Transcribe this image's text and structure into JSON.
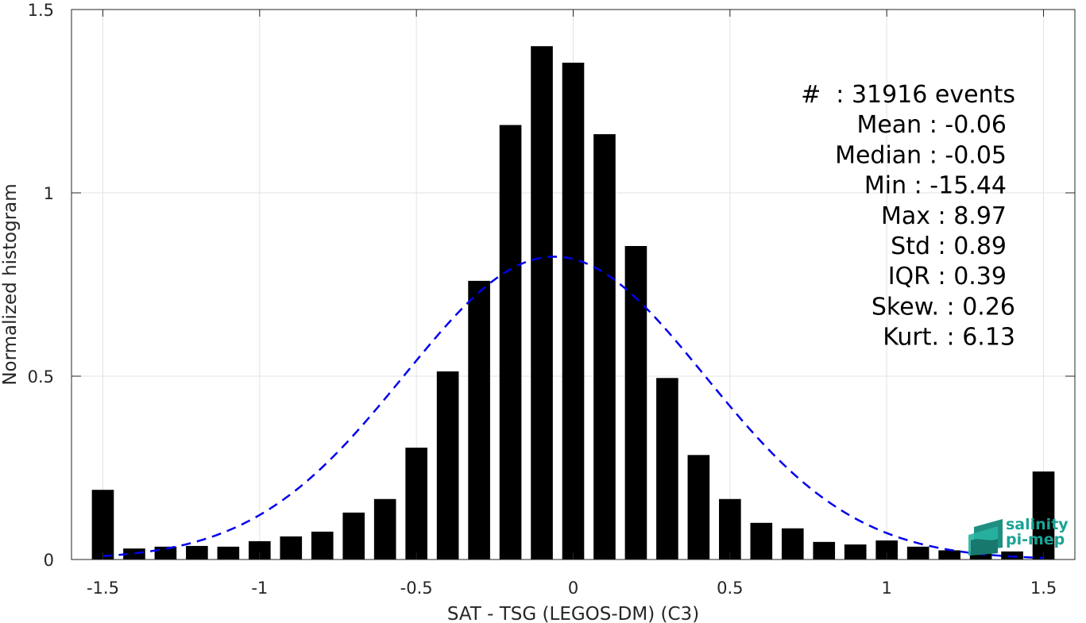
{
  "chart_data": {
    "type": "bar",
    "xlabel": "SAT - TSG (LEGOS-DM) (C3)",
    "ylabel": "Normalized histogram",
    "xlim": [
      -1.6,
      1.6
    ],
    "ylim": [
      0,
      1.5
    ],
    "xticks": [
      -1.5,
      -1,
      -0.5,
      0,
      0.5,
      1,
      1.5
    ],
    "xtick_labels": [
      "-1.5",
      "-1",
      "-0.5",
      "0",
      "0.5",
      "1",
      "1.5"
    ],
    "yticks": [
      0,
      0.5,
      1,
      1.5
    ],
    "ytick_labels": [
      "0",
      "0.5",
      "1",
      "1.5"
    ],
    "grid": true,
    "bar_width": 0.07,
    "bar_color": "#000000",
    "bars": [
      {
        "x": -1.5,
        "value": 0.19
      },
      {
        "x": -1.4,
        "value": 0.03
      },
      {
        "x": -1.3,
        "value": 0.035
      },
      {
        "x": -1.2,
        "value": 0.037
      },
      {
        "x": -1.1,
        "value": 0.035
      },
      {
        "x": -1.0,
        "value": 0.05
      },
      {
        "x": -0.9,
        "value": 0.063
      },
      {
        "x": -0.8,
        "value": 0.076
      },
      {
        "x": -0.7,
        "value": 0.128
      },
      {
        "x": -0.6,
        "value": 0.165
      },
      {
        "x": -0.5,
        "value": 0.305
      },
      {
        "x": -0.4,
        "value": 0.513
      },
      {
        "x": -0.3,
        "value": 0.76
      },
      {
        "x": -0.2,
        "value": 1.185
      },
      {
        "x": -0.1,
        "value": 1.4
      },
      {
        "x": 0.0,
        "value": 1.355
      },
      {
        "x": 0.1,
        "value": 1.16
      },
      {
        "x": 0.2,
        "value": 0.855
      },
      {
        "x": 0.3,
        "value": 0.495
      },
      {
        "x": 0.4,
        "value": 0.285
      },
      {
        "x": 0.5,
        "value": 0.165
      },
      {
        "x": 0.6,
        "value": 0.1
      },
      {
        "x": 0.7,
        "value": 0.085
      },
      {
        "x": 0.8,
        "value": 0.048
      },
      {
        "x": 0.9,
        "value": 0.041
      },
      {
        "x": 1.0,
        "value": 0.052
      },
      {
        "x": 1.1,
        "value": 0.035
      },
      {
        "x": 1.2,
        "value": 0.025
      },
      {
        "x": 1.3,
        "value": 0.022
      },
      {
        "x": 1.4,
        "value": 0.022
      },
      {
        "x": 1.5,
        "value": 0.24
      }
    ],
    "fit_curve": {
      "type": "gaussian",
      "mean": -0.06,
      "std": 0.48,
      "peak": 0.826,
      "x_range": [
        -1.5,
        1.5
      ],
      "color": "#0000ee",
      "style": "dashed"
    },
    "annotation_lines": [
      "#  : 31916 events",
      "Mean : -0.06",
      "Median : -0.05",
      "Min : -15.44",
      "Max : 8.97",
      "Std : 0.89",
      "IQR : 0.39",
      "Skew. : 0.26",
      "Kurt. : 6.13"
    ],
    "logo_text": [
      "salinity",
      "pi-mep"
    ]
  }
}
